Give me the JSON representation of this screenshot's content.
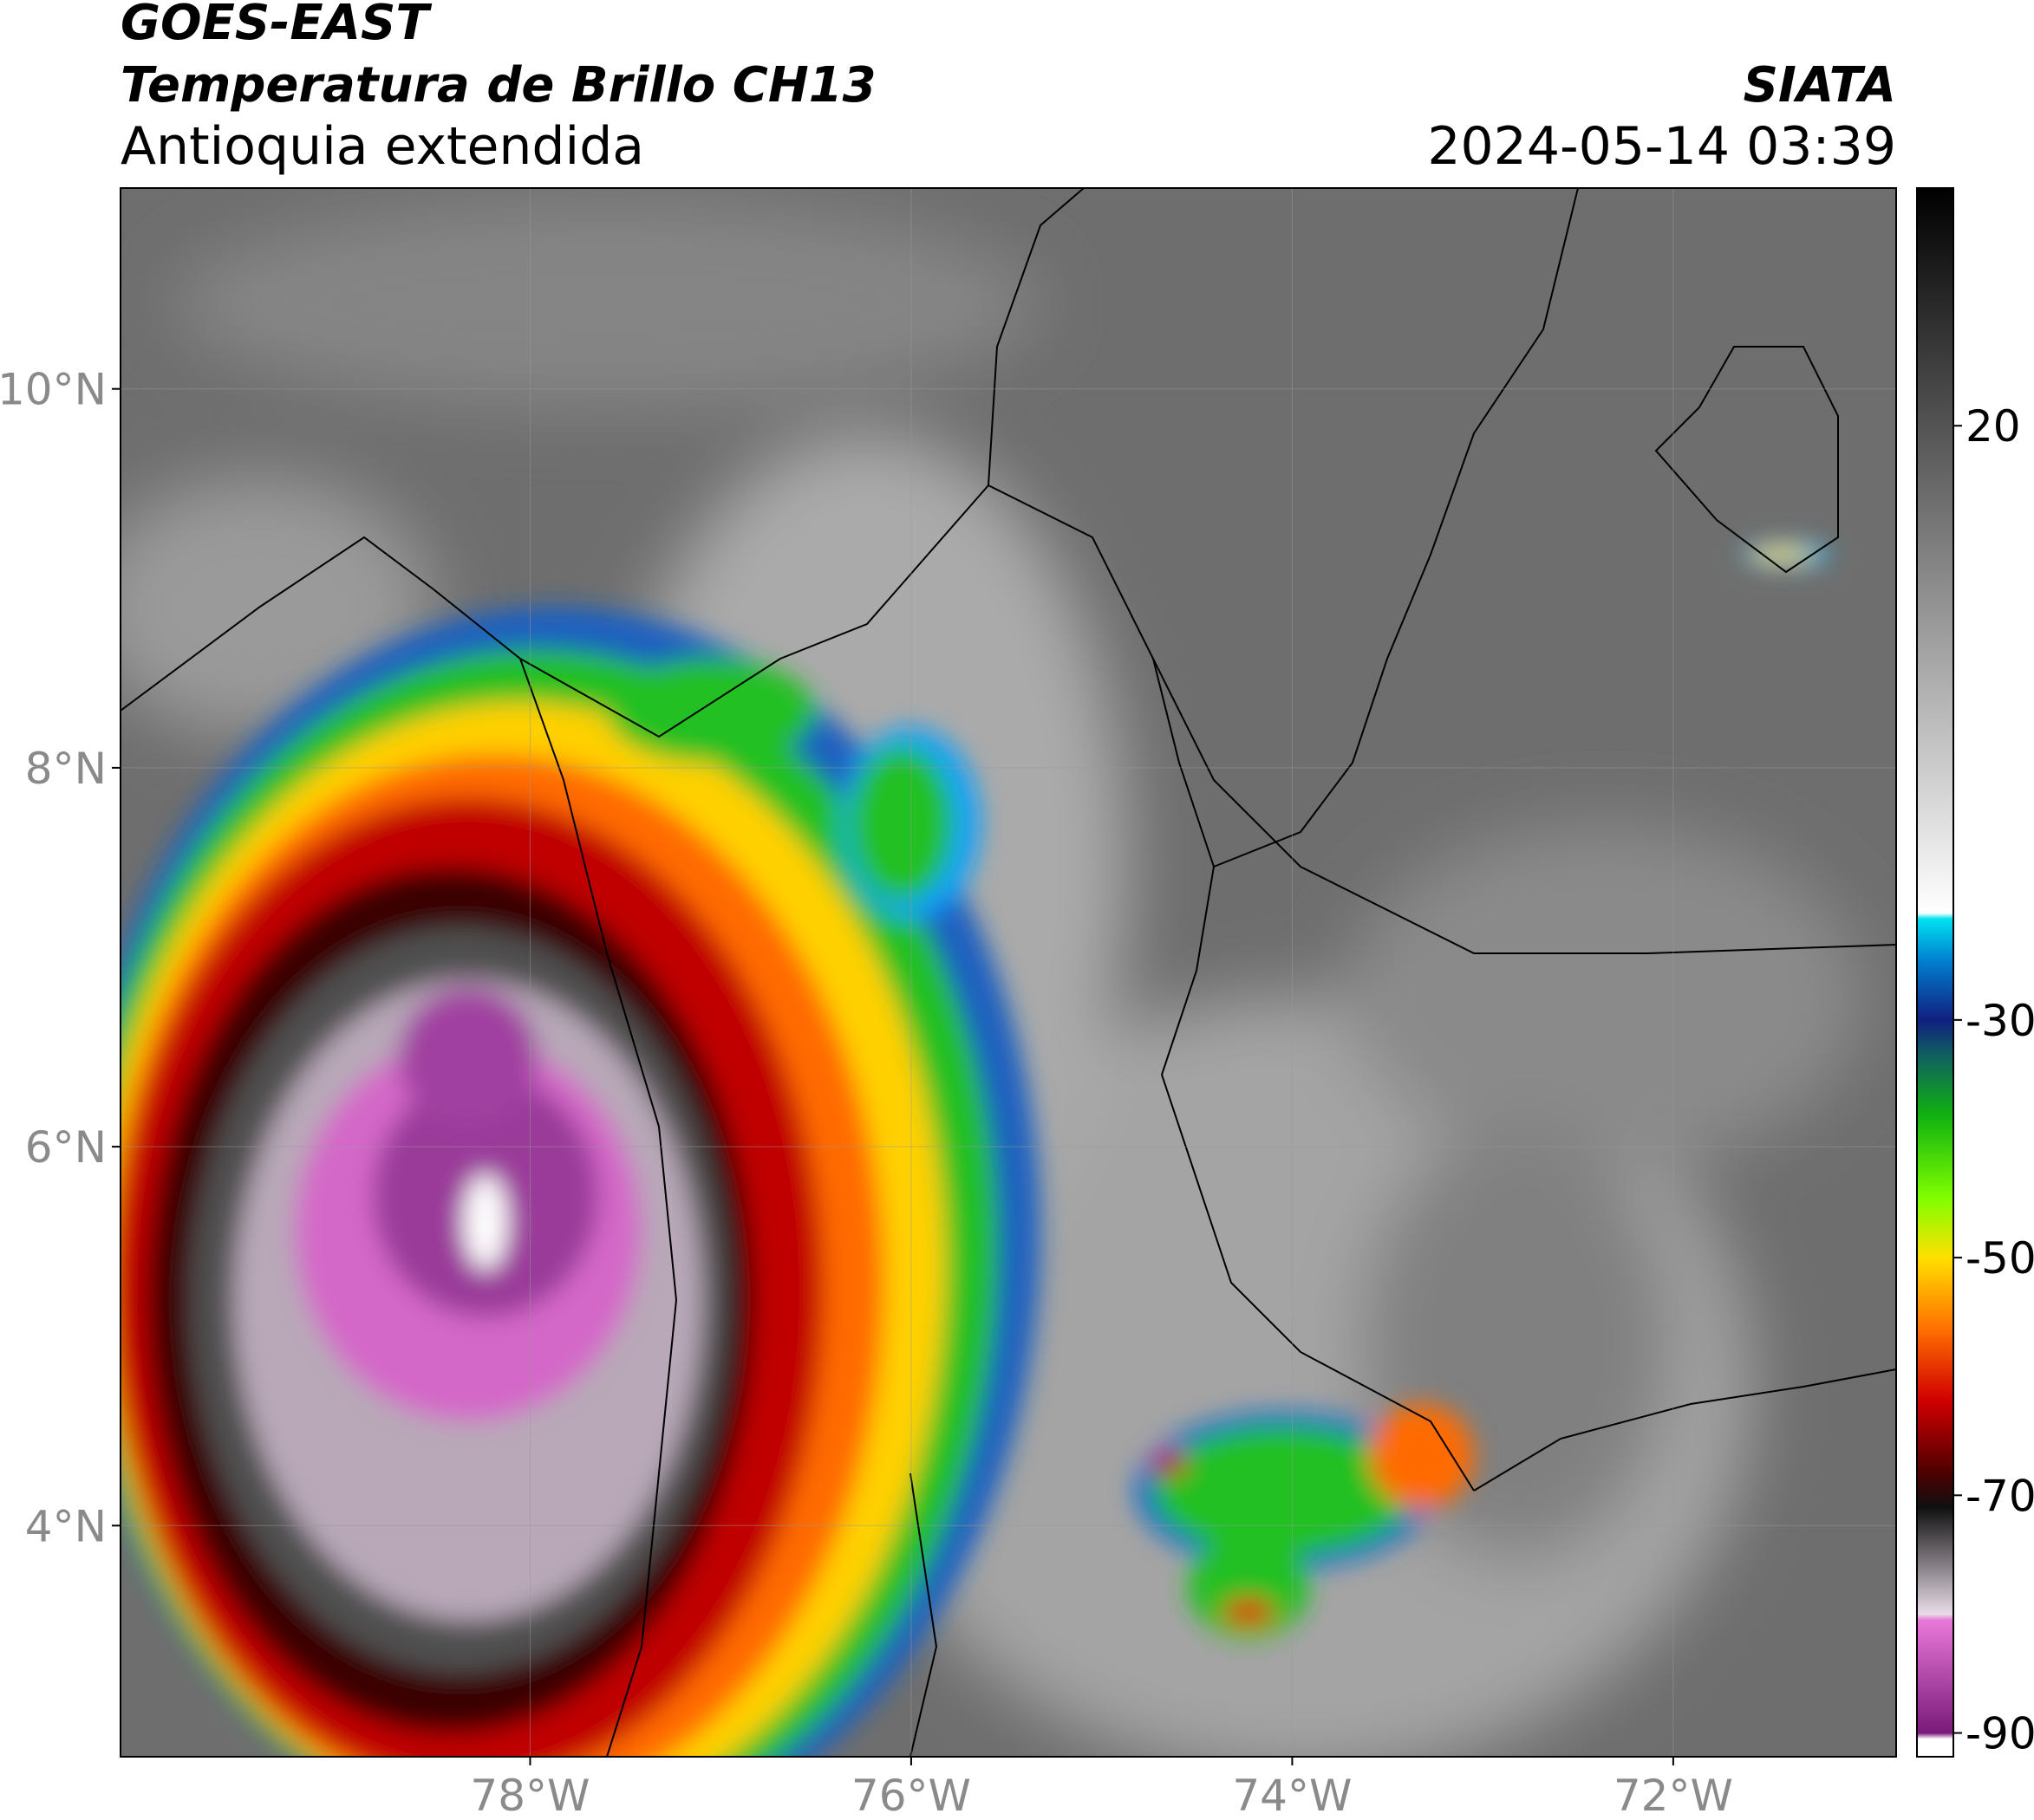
{
  "header": {
    "title": "GOES-EAST",
    "subtitle": "Temperatura de Brillo CH13",
    "region": "Antioquia extendida",
    "source": "SIATA",
    "datetime": "2024-05-14 03:39"
  },
  "map": {
    "xlim": [
      -80.15,
      -70.83
    ],
    "ylim": [
      2.78,
      11.06
    ],
    "xticks": [
      {
        "value": -78,
        "label": "78°W"
      },
      {
        "value": -76,
        "label": "76°W"
      },
      {
        "value": -74,
        "label": "74°W"
      },
      {
        "value": -72,
        "label": "72°W"
      }
    ],
    "yticks": [
      {
        "value": 4,
        "label": "4°N"
      },
      {
        "value": 6,
        "label": "6°N"
      },
      {
        "value": 8,
        "label": "8°N"
      },
      {
        "value": 10,
        "label": "10°N"
      }
    ],
    "grid": true
  },
  "colorbar": {
    "lim": [
      -92,
      40
    ],
    "ticks": [
      -90,
      -70,
      -50,
      -30,
      20
    ],
    "colormap": [
      {
        "value": -92,
        "color": "#ffffff"
      },
      {
        "value": -90.5,
        "color": "#ffffff"
      },
      {
        "value": -90,
        "color": "#7a1a7a"
      },
      {
        "value": -80.5,
        "color": "#e878d8"
      },
      {
        "value": -80,
        "color": "#e8dce8"
      },
      {
        "value": -71,
        "color": "#101010"
      },
      {
        "value": -68,
        "color": "#500000"
      },
      {
        "value": -62,
        "color": "#d00000"
      },
      {
        "value": -56,
        "color": "#ff7000"
      },
      {
        "value": -50,
        "color": "#ffe000"
      },
      {
        "value": -45,
        "color": "#80ff00"
      },
      {
        "value": -38,
        "color": "#10b010"
      },
      {
        "value": -33,
        "color": "#106060"
      },
      {
        "value": -30,
        "color": "#102080"
      },
      {
        "value": -25,
        "color": "#0080d0"
      },
      {
        "value": -21.5,
        "color": "#00e0f0"
      },
      {
        "value": -21,
        "color": "#ffffff"
      },
      {
        "value": 40,
        "color": "#000000"
      }
    ]
  }
}
